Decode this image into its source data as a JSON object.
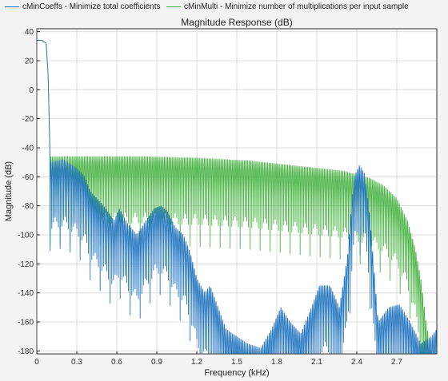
{
  "chart_data": {
    "type": "line",
    "title": "Magnitude Response (dB)",
    "xlabel": "Frequency (kHz)",
    "ylabel": "Magnitude (dB)",
    "xlim": [
      0,
      3.0
    ],
    "ylim": [
      -182,
      42
    ],
    "xticks": [
      "0",
      "0.3",
      "0.6",
      "0.9",
      "1.2",
      "1.5",
      "1.8",
      "2.1",
      "2.4",
      "2.7"
    ],
    "yticks": [
      "40",
      "20",
      "0",
      "-20",
      "-40",
      "-60",
      "-80",
      "-100",
      "-120",
      "-140",
      "-160",
      "-180"
    ],
    "grid": true,
    "legend_position": "top",
    "series": [
      {
        "name": "cMinCoeffs - Minimize total coefficients",
        "color": "#2878c0",
        "passband": [
          [
            0,
            34
          ],
          [
            0.04,
            34
          ],
          [
            0.07,
            32
          ],
          [
            0.085,
            10
          ],
          [
            0.1,
            -50
          ]
        ],
        "envelope": [
          [
            0.1,
            -50
          ],
          [
            0.2,
            -48
          ],
          [
            0.3,
            -54
          ],
          [
            0.36,
            -60
          ],
          [
            0.4,
            -70
          ],
          [
            0.5,
            -80
          ],
          [
            0.58,
            -90
          ],
          [
            0.62,
            -82
          ],
          [
            0.68,
            -92
          ],
          [
            0.75,
            -100
          ],
          [
            0.82,
            -90
          ],
          [
            0.88,
            -82
          ],
          [
            0.93,
            -80
          ],
          [
            0.98,
            -84
          ],
          [
            1.04,
            -95
          ],
          [
            1.1,
            -100
          ],
          [
            1.15,
            -112
          ],
          [
            1.2,
            -130
          ],
          [
            1.26,
            -140
          ],
          [
            1.3,
            -135
          ],
          [
            1.36,
            -150
          ],
          [
            1.42,
            -165
          ],
          [
            1.5,
            -170
          ],
          [
            1.58,
            -175
          ],
          [
            1.68,
            -178
          ],
          [
            1.76,
            -165
          ],
          [
            1.83,
            -150
          ],
          [
            1.9,
            -160
          ],
          [
            1.98,
            -168
          ],
          [
            2.06,
            -150
          ],
          [
            2.12,
            -135
          ],
          [
            2.2,
            -135
          ],
          [
            2.27,
            -150
          ],
          [
            2.33,
            -115
          ],
          [
            2.38,
            -60
          ],
          [
            2.42,
            -52
          ],
          [
            2.46,
            -58
          ],
          [
            2.5,
            -90
          ],
          [
            2.56,
            -160
          ],
          [
            2.64,
            -150
          ],
          [
            2.72,
            -148
          ],
          [
            2.8,
            -160
          ],
          [
            2.88,
            -175
          ],
          [
            2.96,
            -170
          ],
          [
            3.0,
            -165
          ]
        ],
        "ripple_period_khz": 0.0125
      },
      {
        "name": "cMinMulti - Minimize number of multiplications per input sample",
        "color": "#4fb54a",
        "passband": [
          [
            0,
            34
          ],
          [
            0.04,
            34
          ],
          [
            0.07,
            32
          ],
          [
            0.085,
            10
          ],
          [
            0.1,
            -46
          ]
        ],
        "envelope": [
          [
            0.1,
            -46
          ],
          [
            0.4,
            -46
          ],
          [
            0.8,
            -46
          ],
          [
            1.2,
            -47
          ],
          [
            1.6,
            -49
          ],
          [
            2.0,
            -53
          ],
          [
            2.3,
            -56
          ],
          [
            2.5,
            -61
          ],
          [
            2.6,
            -66
          ],
          [
            2.7,
            -75
          ],
          [
            2.78,
            -90
          ],
          [
            2.84,
            -110
          ],
          [
            2.88,
            -130
          ],
          [
            2.92,
            -160
          ],
          [
            2.96,
            -182
          ],
          [
            3.0,
            -182
          ]
        ],
        "ripple_period_khz": 0.0125
      }
    ]
  }
}
